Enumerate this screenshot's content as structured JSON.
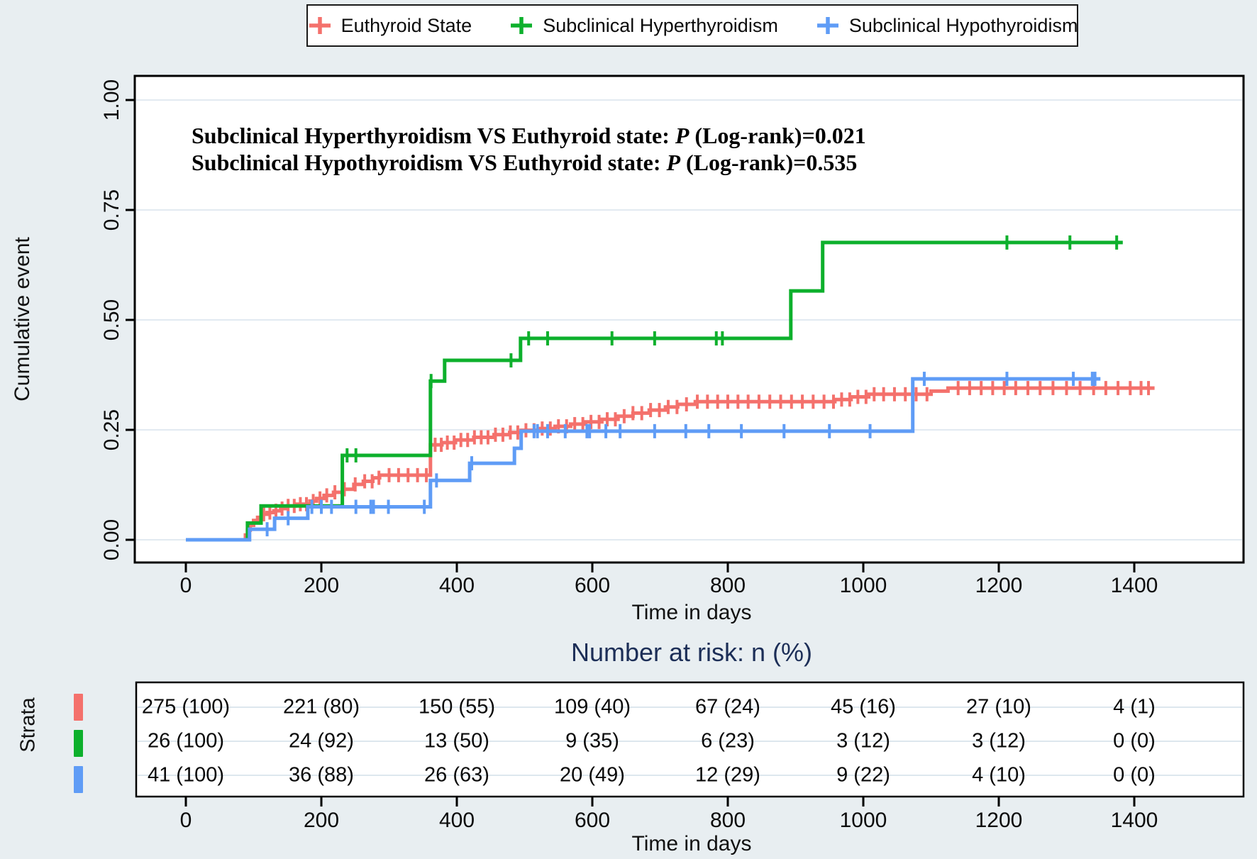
{
  "legend": {
    "items": [
      {
        "id": "euthyroid",
        "label": "Euthyroid State",
        "color": "#f4716c"
      },
      {
        "id": "hyper",
        "label": "Subclinical Hyperthyroidism",
        "color": "#0db02c"
      },
      {
        "id": "hypo",
        "label": "Subclinical Hypothyroidism",
        "color": "#5f9cf6"
      }
    ]
  },
  "annotation": {
    "line1": {
      "pre": "Subclinical Hyperthyroidism VS Euthyroid state: ",
      "p": "P",
      "post": " (Log-rank)=0.021"
    },
    "line2": {
      "pre": "Subclinical Hypothyroidism VS Euthyroid state: ",
      "p": "P",
      "post": " (Log-rank)=0.535"
    }
  },
  "chart_data": {
    "type": "line",
    "subtype": "kaplan-meier-cumulative-event",
    "title": "",
    "xlabel": "Time in days",
    "ylabel": "Cumulative event",
    "xlim": [
      0,
      1400
    ],
    "ylim": [
      0.0,
      1.0
    ],
    "x_ticks": [
      0,
      200,
      400,
      600,
      800,
      1000,
      1200,
      1400
    ],
    "y_ticks": [
      "0.00",
      "0.25",
      "0.50",
      "0.75",
      "1.00"
    ],
    "grid": "horizontal-only",
    "legend_position": "top",
    "background": "#e8eef1",
    "panel_background": "#ffffff",
    "gridline_color": "#e2eaf1",
    "series": [
      {
        "name": "Euthyroid State",
        "color": "#f4716c",
        "steps": [
          [
            0,
            0
          ],
          [
            88,
            0.011
          ],
          [
            91,
            0.022
          ],
          [
            95,
            0.033
          ],
          [
            100,
            0.044
          ],
          [
            106,
            0.051
          ],
          [
            112,
            0.058
          ],
          [
            120,
            0.062
          ],
          [
            130,
            0.066
          ],
          [
            140,
            0.071
          ],
          [
            150,
            0.077
          ],
          [
            162,
            0.081
          ],
          [
            183,
            0.088
          ],
          [
            193,
            0.094
          ],
          [
            204,
            0.101
          ],
          [
            218,
            0.108
          ],
          [
            232,
            0.115
          ],
          [
            248,
            0.126
          ],
          [
            262,
            0.133
          ],
          [
            276,
            0.141
          ],
          [
            286,
            0.147
          ],
          [
            361,
            0.216
          ],
          [
            378,
            0.221
          ],
          [
            398,
            0.227
          ],
          [
            425,
            0.233
          ],
          [
            455,
            0.239
          ],
          [
            478,
            0.244
          ],
          [
            495,
            0.249
          ],
          [
            520,
            0.253
          ],
          [
            545,
            0.258
          ],
          [
            568,
            0.263
          ],
          [
            590,
            0.268
          ],
          [
            614,
            0.274
          ],
          [
            638,
            0.281
          ],
          [
            660,
            0.288
          ],
          [
            684,
            0.295
          ],
          [
            708,
            0.302
          ],
          [
            726,
            0.308
          ],
          [
            752,
            0.314
          ],
          [
            958,
            0.319
          ],
          [
            982,
            0.325
          ],
          [
            1008,
            0.331
          ],
          [
            1100,
            0.338
          ],
          [
            1125,
            0.345
          ]
        ],
        "end_day": 1430,
        "censor_days": [
          115,
          124,
          133,
          142,
          151,
          160,
          169,
          178,
          188,
          198,
          208,
          220,
          234,
          250,
          264,
          275,
          285,
          300,
          314,
          328,
          342,
          355,
          368,
          377,
          386,
          396,
          406,
          416,
          426,
          436,
          446,
          457,
          468,
          479,
          490,
          502,
          514,
          526,
          538,
          550,
          562,
          574,
          586,
          598,
          610,
          622,
          634,
          647,
          660,
          673,
          686,
          699,
          712,
          725,
          739,
          755,
          770,
          785,
          800,
          815,
          830,
          846,
          862,
          878,
          894,
          910,
          926,
          942,
          956,
          968,
          980,
          992,
          1004,
          1016,
          1030,
          1046,
          1062,
          1078,
          1094,
          1140,
          1157,
          1174,
          1191,
          1208,
          1225,
          1243,
          1261,
          1280,
          1300,
          1320,
          1340,
          1358,
          1376,
          1394,
          1410,
          1421
        ]
      },
      {
        "name": "Subclinical Hyperthyroidism",
        "color": "#0db02c",
        "steps": [
          [
            0,
            0
          ],
          [
            91,
            0.038
          ],
          [
            111,
            0.077
          ],
          [
            231,
            0.192
          ],
          [
            361,
            0.361
          ],
          [
            382,
            0.408
          ],
          [
            494,
            0.458
          ],
          [
            893,
            0.566
          ],
          [
            940,
            0.676
          ]
        ],
        "end_day": 1383,
        "censor_days": [
          238,
          251,
          362,
          480,
          506,
          534,
          629,
          692,
          783,
          792,
          1212,
          1305,
          1374
        ]
      },
      {
        "name": "Subclinical Hypothyroidism",
        "color": "#5f9cf6",
        "steps": [
          [
            0,
            0
          ],
          [
            94,
            0.024
          ],
          [
            131,
            0.049
          ],
          [
            180,
            0.075
          ],
          [
            361,
            0.135
          ],
          [
            419,
            0.174
          ],
          [
            485,
            0.208
          ],
          [
            495,
            0.247
          ],
          [
            1073,
            0.366
          ]
        ],
        "end_day": 1350,
        "censor_days": [
          120,
          151,
          186,
          200,
          215,
          251,
          273,
          277,
          299,
          352,
          370,
          422,
          514,
          519,
          534,
          560,
          592,
          596,
          620,
          641,
          692,
          738,
          772,
          820,
          883,
          950,
          1010,
          1090,
          1212,
          1310,
          1338,
          1342
        ]
      }
    ]
  },
  "risk_table": {
    "title": "Number at risk: n (%)",
    "strata_label": "Strata",
    "xlabel": "Time in days",
    "x_ticks": [
      0,
      200,
      400,
      600,
      800,
      1000,
      1200,
      1400
    ],
    "rows": [
      {
        "stratum": "Euthyroid State",
        "color": "#f4716c",
        "values": [
          "275 (100)",
          "221 (80)",
          "150 (55)",
          "109 (40)",
          "67 (24)",
          "45 (16)",
          "27 (10)",
          "4 (1)"
        ]
      },
      {
        "stratum": "Subclinical Hyperthyroidism",
        "color": "#0db02c",
        "values": [
          "26 (100)",
          "24 (92)",
          "13 (50)",
          "9 (35)",
          "6 (23)",
          "3 (12)",
          "3 (12)",
          "0 (0)"
        ]
      },
      {
        "stratum": "Subclinical Hypothyroidism",
        "color": "#5f9cf6",
        "values": [
          "41 (100)",
          "36 (88)",
          "26 (63)",
          "20 (49)",
          "12 (29)",
          "9 (22)",
          "4 (10)",
          "0 (0)"
        ]
      }
    ]
  }
}
